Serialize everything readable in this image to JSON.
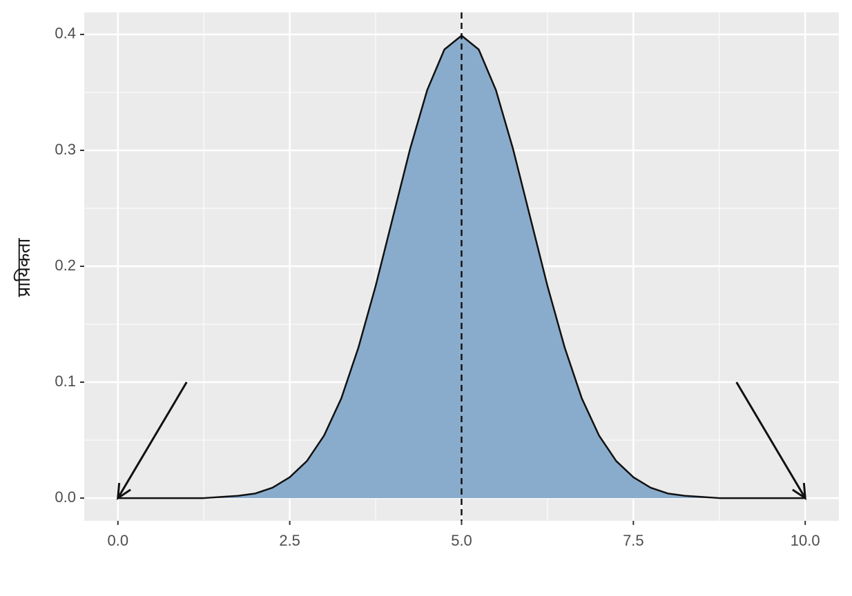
{
  "chart_data": {
    "type": "area",
    "y_label": "प्रायिकता",
    "x": [
      0,
      0.25,
      0.5,
      0.75,
      1,
      1.25,
      1.5,
      1.75,
      2,
      2.25,
      2.5,
      2.75,
      3,
      3.25,
      3.5,
      3.75,
      4,
      4.25,
      4.5,
      4.75,
      5,
      5.25,
      5.5,
      5.75,
      6,
      6.25,
      6.5,
      6.75,
      7,
      7.25,
      7.5,
      7.75,
      8,
      8.25,
      8.5,
      8.75,
      9,
      9.25,
      9.5,
      9.75,
      10
    ],
    "values": [
      0,
      0,
      0,
      0,
      0,
      0,
      0.001,
      0.002,
      0.004,
      0.009,
      0.018,
      0.032,
      0.054,
      0.086,
      0.13,
      0.183,
      0.242,
      0.301,
      0.352,
      0.387,
      0.399,
      0.387,
      0.352,
      0.301,
      0.242,
      0.183,
      0.13,
      0.086,
      0.054,
      0.032,
      0.018,
      0.009,
      0.004,
      0.002,
      0.001,
      0,
      0,
      0,
      0,
      0,
      0
    ],
    "color": "#8aaccc",
    "line_color": "#111111",
    "vline": 5,
    "arrows": [
      {
        "x": [
          1,
          0
        ],
        "y": [
          0.1,
          0
        ]
      },
      {
        "x": [
          9,
          10
        ],
        "y": [
          0.1,
          0
        ]
      }
    ],
    "xlim": [
      -0.49,
      10.49
    ],
    "ylim": [
      -0.0196,
      0.419
    ],
    "xticks": [
      {
        "value": 0,
        "label": "0.0"
      },
      2.5,
      {
        "value": 5,
        "label": "5.0"
      },
      7.5,
      {
        "value": 10,
        "label": "10.0"
      }
    ],
    "yticks": [
      {
        "value": 0,
        "label": "0.0"
      },
      0.1,
      0.2,
      0.3,
      0.4
    ],
    "grid": true
  }
}
